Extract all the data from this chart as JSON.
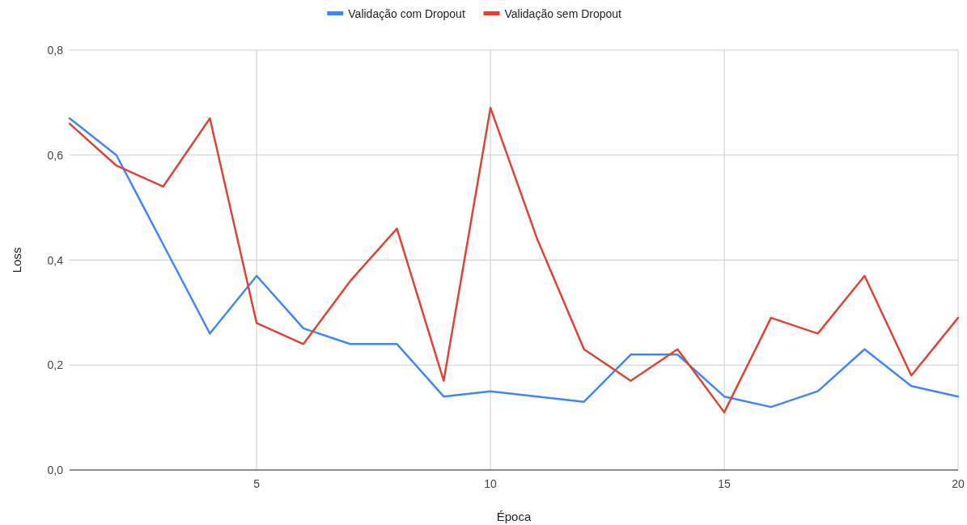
{
  "chart_data": {
    "type": "line",
    "xlabel": "Época",
    "ylabel": "Loss",
    "x": [
      1,
      2,
      3,
      4,
      5,
      6,
      7,
      8,
      9,
      10,
      11,
      12,
      13,
      14,
      15,
      16,
      17,
      18,
      19,
      20
    ],
    "xlim": [
      1,
      20
    ],
    "xticks": [
      5,
      10,
      15,
      20
    ],
    "ylim": [
      0,
      0.8
    ],
    "yticks": [
      {
        "value": 0,
        "label": "0,0"
      },
      {
        "value": 0.2,
        "label": "0,2"
      },
      {
        "value": 0.4,
        "label": "0,4"
      },
      {
        "value": 0.6,
        "label": "0,6"
      },
      {
        "value": 0.8,
        "label": "0,8"
      }
    ],
    "grid": true,
    "legend": "top",
    "marker": "none",
    "line_style": "solid",
    "series": [
      {
        "name": "Validação com Dropout",
        "color": "#4285f4",
        "values": [
          0.67,
          0.6,
          0.43,
          0.26,
          0.37,
          0.27,
          0.24,
          0.24,
          0.14,
          0.15,
          0.14,
          0.13,
          0.22,
          0.22,
          0.14,
          0.12,
          0.15,
          0.23,
          0.16,
          0.14
        ]
      },
      {
        "name": "Validação sem Dropout",
        "color": "#db4437",
        "values": [
          0.66,
          0.58,
          0.54,
          0.67,
          0.28,
          0.24,
          0.36,
          0.46,
          0.17,
          0.69,
          0.44,
          0.23,
          0.17,
          0.23,
          0.11,
          0.29,
          0.26,
          0.37,
          0.18,
          0.29
        ]
      }
    ]
  }
}
